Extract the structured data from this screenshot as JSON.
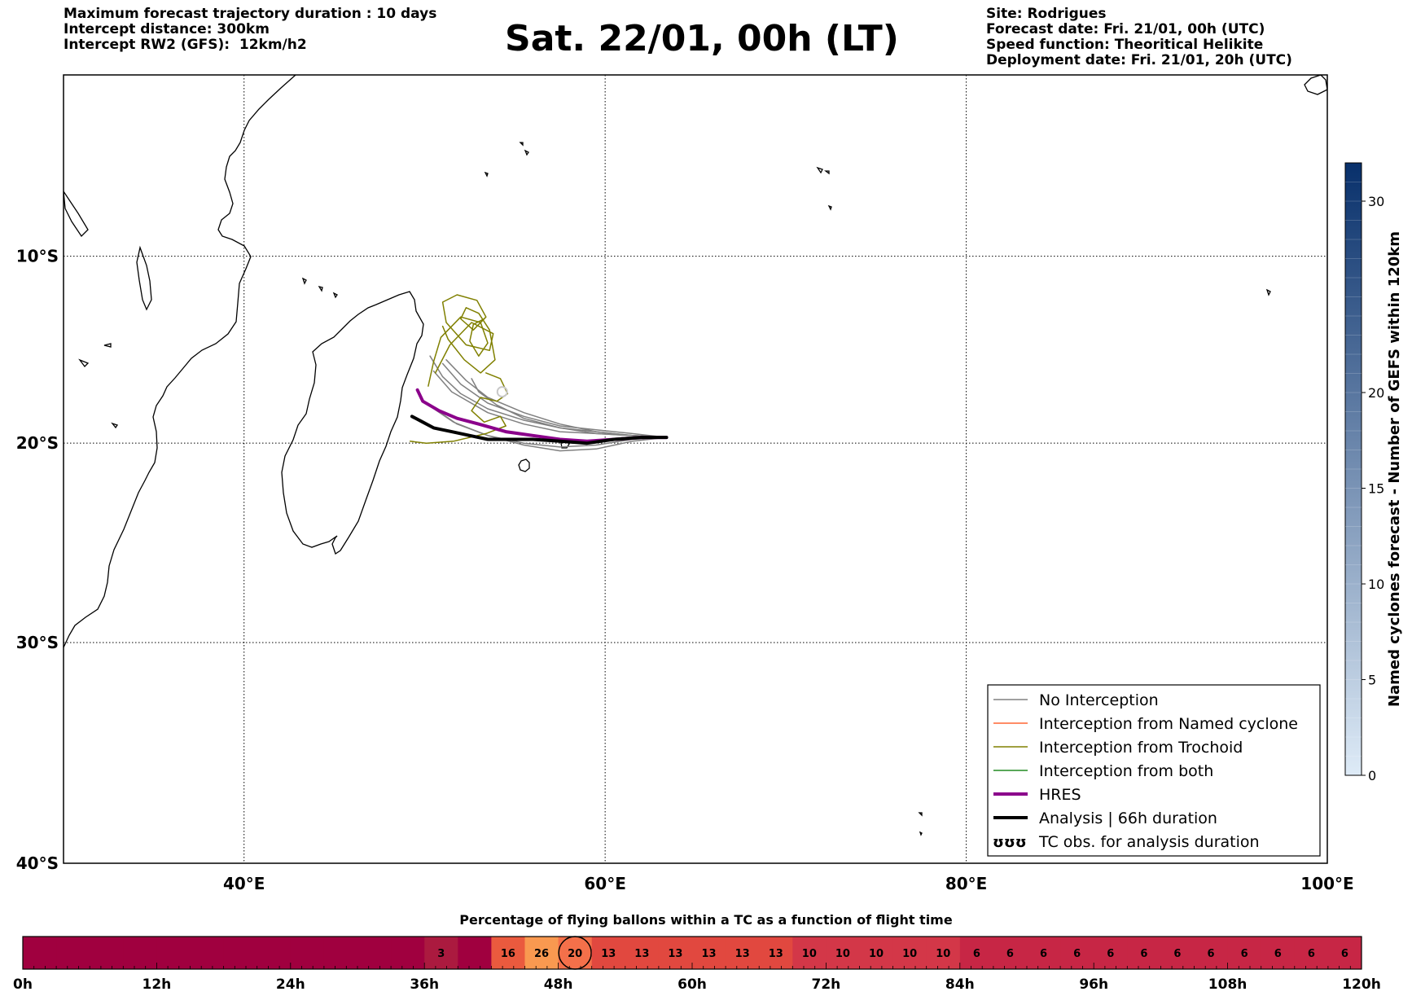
{
  "header": {
    "left": [
      "Maximum forecast trajectory duration : 10 days",
      "Intercept distance: 300km",
      "Intercept RW2 (GFS):  12km/h2"
    ],
    "title": "Sat. 22/01, 00h (LT)",
    "right": [
      "Site: Rodrigues",
      "Forecast date: Fri. 21/01, 00h (UTC)",
      "Speed function: Theoritical Helikite",
      "Deployment date: Fri. 21/01, 20h (UTC)"
    ]
  },
  "map": {
    "lon_range": [
      30,
      100
    ],
    "lat_range": [
      -40,
      0
    ],
    "lon_ticks": [
      40,
      60,
      80,
      100
    ],
    "lon_tick_labels": [
      "40°E",
      "60°E",
      "80°E",
      "100°E"
    ],
    "lat_ticks": [
      -10,
      -20,
      -30,
      -40
    ],
    "lat_tick_labels": [
      "10°S",
      "20°S",
      "30°S",
      "40°S"
    ]
  },
  "legend": {
    "items": [
      {
        "label": "No Interception",
        "color": "#808080",
        "style": "thin"
      },
      {
        "label": "Interception from Named cyclone",
        "color": "#ff6633",
        "style": "thin"
      },
      {
        "label": "Interception from Trochoid",
        "color": "#808000",
        "style": "thin"
      },
      {
        "label": "Interception from both",
        "color": "#228b22",
        "style": "thin"
      },
      {
        "label": "HRES",
        "color": "#8b008b",
        "style": "thick"
      },
      {
        "label": "Analysis | 66h duration",
        "color": "#000000",
        "style": "thick"
      },
      {
        "label": "TC obs. for analysis duration",
        "color": "#000000",
        "style": "glyph",
        "glyph": "ʊʊʊ"
      }
    ]
  },
  "colorbar": {
    "label": "Named cyclones forecast - Number of GEFS within 120km",
    "min": 0,
    "max": 32,
    "ticks": [
      0,
      5,
      10,
      15,
      20,
      30
    ],
    "tick_labels": [
      "0",
      "5",
      "10",
      "15",
      "20",
      "30"
    ],
    "color_low": "#deebf7",
    "color_high": "#08306b"
  },
  "timeline": {
    "title": "Percentage of flying ballons within a TC as a function of flight time",
    "ticks": [
      0,
      12,
      24,
      36,
      48,
      60,
      72,
      84,
      96,
      108,
      120
    ],
    "tick_labels": [
      "0h",
      "12h",
      "24h",
      "36h",
      "48h",
      "60h",
      "72h",
      "84h",
      "96h",
      "108h",
      "120h"
    ],
    "current_cell": 16
  },
  "chart_data": [
    {
      "type": "line",
      "title": "Sat. 22/01, 00h (LT)",
      "xlabel": "",
      "ylabel": "",
      "xlim": [
        30,
        100
      ],
      "ylim": [
        -40,
        0
      ],
      "grid": true,
      "legend_position": "bottom-right",
      "series": [
        {
          "name": "HRES",
          "color": "#8b008b",
          "x": [
            63.4,
            62.0,
            60.5,
            59.0,
            57.5,
            56.0,
            54.5,
            53.0,
            51.8,
            50.8,
            49.9,
            49.6
          ],
          "y": [
            -19.7,
            -19.7,
            -19.8,
            -19.9,
            -19.8,
            -19.6,
            -19.4,
            -19.0,
            -18.7,
            -18.3,
            -17.8,
            -17.2
          ]
        },
        {
          "name": "Analysis | 66h duration",
          "color": "#000000",
          "x": [
            63.4,
            62.0,
            60.5,
            59.0,
            57.5,
            56.0,
            54.5,
            53.5,
            52.5,
            51.5,
            50.5,
            49.9,
            49.3
          ],
          "y": [
            -19.7,
            -19.7,
            -19.8,
            -20.0,
            -19.9,
            -19.8,
            -19.8,
            -19.8,
            -19.6,
            -19.4,
            -19.2,
            -18.9,
            -18.6
          ]
        },
        {
          "name": "No Interception",
          "color": "#808080",
          "x": [
            63.4,
            61.5,
            59.5,
            57.5,
            55.5,
            53.5,
            51.5,
            50.5
          ],
          "y": [
            -19.7,
            -19.6,
            -19.5,
            -19.4,
            -19.0,
            -18.4,
            -17.3,
            -16.2
          ]
        },
        {
          "name": "No Interception",
          "color": "#808080",
          "x": [
            63.4,
            61.5,
            59.5,
            57.5,
            55.5,
            53.5,
            52.0,
            51.0
          ],
          "y": [
            -19.7,
            -19.5,
            -19.3,
            -19.1,
            -18.6,
            -17.9,
            -16.9,
            -15.8
          ]
        },
        {
          "name": "No Interception",
          "color": "#808080",
          "x": [
            63.4,
            61.5,
            59.5,
            57.5,
            55.5,
            54.0,
            53.0,
            52.6
          ],
          "y": [
            -19.7,
            -19.6,
            -19.5,
            -19.2,
            -18.7,
            -18.0,
            -17.3,
            -16.6
          ]
        },
        {
          "name": "No Interception",
          "color": "#808080",
          "x": [
            63.4,
            61.5,
            59.5,
            57.5,
            55.5,
            53.5,
            51.8,
            50.4
          ],
          "y": [
            -19.7,
            -19.8,
            -20.1,
            -20.2,
            -20.0,
            -19.6,
            -19.0,
            -18.1
          ]
        },
        {
          "name": "No Interception",
          "color": "#808080",
          "x": [
            63.4,
            61.5,
            59.5,
            57.5,
            55.5,
            53.5,
            51.6,
            50.2
          ],
          "y": [
            -19.7,
            -19.9,
            -20.3,
            -20.4,
            -20.1,
            -19.6,
            -18.9,
            -18.0
          ]
        },
        {
          "name": "No Interception",
          "color": "#808080",
          "x": [
            63.4,
            61.5,
            59.5,
            57.5,
            55.5,
            53.5,
            52.0,
            51.0,
            50.3
          ],
          "y": [
            -19.7,
            -19.6,
            -19.4,
            -19.2,
            -18.8,
            -18.2,
            -17.4,
            -16.5,
            -15.4
          ]
        },
        {
          "name": "No Interception",
          "color": "#808080",
          "x": [
            63.4,
            61.5,
            59.5,
            57.5,
            55.5,
            53.5,
            52.3,
            51.2
          ],
          "y": [
            -19.7,
            -19.6,
            -19.4,
            -19.0,
            -18.4,
            -17.6,
            -16.7,
            -15.6
          ]
        },
        {
          "name": "Interception from Trochoid",
          "color": "#808000",
          "x": [
            50.6,
            51.4,
            52.6,
            53.8,
            53.6,
            52.3,
            51.2,
            51.0,
            51.8,
            52.9,
            53.4,
            52.7,
            52.0,
            52.3,
            53.0,
            53.6,
            53.9,
            53.1,
            52.2,
            51.3,
            51.0
          ],
          "y": [
            -16.3,
            -14.8,
            -13.6,
            -14.2,
            -15.1,
            -14.8,
            -13.6,
            -12.5,
            -12.1,
            -12.4,
            -13.3,
            -14.0,
            -13.4,
            -12.8,
            -13.1,
            -14.0,
            -15.6,
            -16.3,
            -15.6,
            -14.5,
            -13.8
          ]
        },
        {
          "name": "Interception from Trochoid",
          "color": "#808000",
          "x": [
            50.2,
            50.5,
            50.9,
            52.0,
            53.1,
            53.5,
            53.0,
            52.5,
            52.7,
            53.3
          ],
          "y": [
            -17.0,
            -15.7,
            -14.4,
            -13.3,
            -13.6,
            -14.7,
            -15.4,
            -14.6,
            -13.7,
            -13.4
          ]
        },
        {
          "name": "Interception from Trochoid",
          "color": "#808000",
          "x": [
            53.4,
            54.2,
            54.6,
            54.0,
            53.1,
            52.6,
            53.3,
            54.2,
            54.5,
            53.4,
            51.6,
            50.1,
            49.2
          ],
          "y": [
            -16.3,
            -16.6,
            -17.4,
            -17.8,
            -17.6,
            -18.3,
            -18.9,
            -18.6,
            -19.1,
            -19.5,
            -19.9,
            -20.0,
            -19.9
          ]
        }
      ],
      "markers": [
        {
          "name": "TC obs.",
          "x": 54.3,
          "y": -17.3,
          "color": "#c8c8c8"
        }
      ]
    },
    {
      "type": "heatmap",
      "title": "Percentage of flying ballons within a TC as a function of flight time",
      "xlabel": "",
      "x_unit": "h",
      "xlim": [
        0,
        120
      ],
      "bin_hours": 3,
      "cells": [
        {
          "start": 0,
          "value": 0,
          "label": ""
        },
        {
          "start": 3,
          "value": 0,
          "label": ""
        },
        {
          "start": 6,
          "value": 0,
          "label": ""
        },
        {
          "start": 9,
          "value": 0,
          "label": ""
        },
        {
          "start": 12,
          "value": 0,
          "label": ""
        },
        {
          "start": 15,
          "value": 0,
          "label": ""
        },
        {
          "start": 18,
          "value": 0,
          "label": ""
        },
        {
          "start": 21,
          "value": 0,
          "label": ""
        },
        {
          "start": 24,
          "value": 0,
          "label": ""
        },
        {
          "start": 27,
          "value": 0,
          "label": ""
        },
        {
          "start": 30,
          "value": 0,
          "label": ""
        },
        {
          "start": 33,
          "value": 0,
          "label": ""
        },
        {
          "start": 36,
          "value": 3,
          "label": "3"
        },
        {
          "start": 39,
          "value": 0,
          "label": ""
        },
        {
          "start": 42,
          "value": 16,
          "label": "16"
        },
        {
          "start": 45,
          "value": 26,
          "label": "26"
        },
        {
          "start": 48,
          "value": 20,
          "label": "20"
        },
        {
          "start": 51,
          "value": 13,
          "label": "13"
        },
        {
          "start": 54,
          "value": 13,
          "label": "13"
        },
        {
          "start": 57,
          "value": 13,
          "label": "13"
        },
        {
          "start": 60,
          "value": 13,
          "label": "13"
        },
        {
          "start": 63,
          "value": 13,
          "label": "13"
        },
        {
          "start": 66,
          "value": 13,
          "label": "13"
        },
        {
          "start": 69,
          "value": 10,
          "label": "10"
        },
        {
          "start": 72,
          "value": 10,
          "label": "10"
        },
        {
          "start": 75,
          "value": 10,
          "label": "10"
        },
        {
          "start": 78,
          "value": 10,
          "label": "10"
        },
        {
          "start": 81,
          "value": 10,
          "label": "10"
        },
        {
          "start": 84,
          "value": 6,
          "label": "6"
        },
        {
          "start": 87,
          "value": 6,
          "label": "6"
        },
        {
          "start": 90,
          "value": 6,
          "label": "6"
        },
        {
          "start": 93,
          "value": 6,
          "label": "6"
        },
        {
          "start": 96,
          "value": 6,
          "label": "6"
        },
        {
          "start": 99,
          "value": 6,
          "label": "6"
        },
        {
          "start": 102,
          "value": 6,
          "label": "6"
        },
        {
          "start": 105,
          "value": 6,
          "label": "6"
        },
        {
          "start": 108,
          "value": 6,
          "label": "6"
        },
        {
          "start": 111,
          "value": 6,
          "label": "6"
        },
        {
          "start": 114,
          "value": 6,
          "label": "6"
        },
        {
          "start": 117,
          "value": 6,
          "label": "6"
        }
      ],
      "cell_colors": {
        "0": "#a0003f",
        "3": "#ab1a3f",
        "6": "#c72645",
        "10": "#d33748",
        "13": "#e1483f",
        "16": "#ea5a3e",
        "20": "#f4704a",
        "26": "#f99950"
      }
    }
  ]
}
